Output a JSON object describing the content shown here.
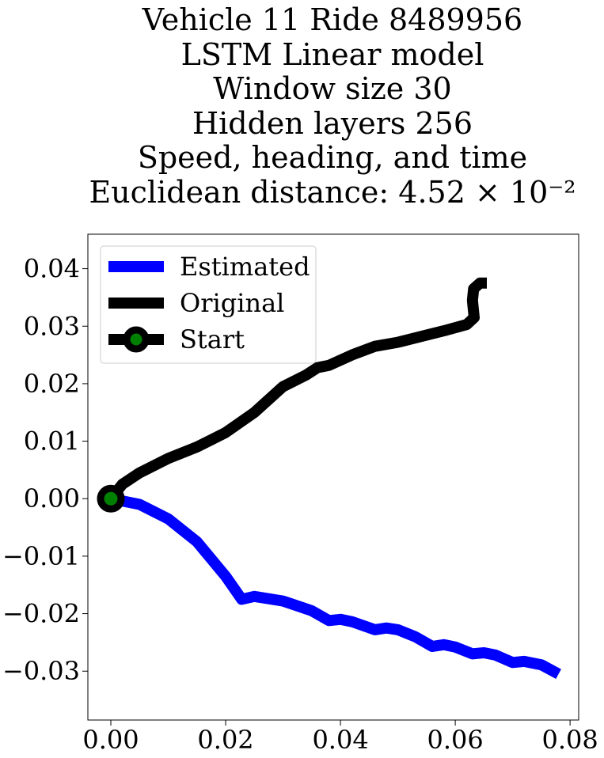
{
  "chart_data": {
    "type": "line",
    "title_lines": [
      "Vehicle 11 Ride 8489956",
      "LSTM Linear model",
      "Window size 30",
      "Hidden layers 256",
      "Speed, heading, and time",
      "Euclidean distance: 4.52 × 10⁻²"
    ],
    "xlabel": "",
    "ylabel": "",
    "xlim": [
      -0.004,
      0.0815
    ],
    "ylim": [
      -0.0385,
      0.046
    ],
    "xticks": [
      0.0,
      0.02,
      0.04,
      0.06,
      0.08
    ],
    "xtick_labels": [
      "0.00",
      "0.02",
      "0.04",
      "0.06",
      "0.08"
    ],
    "yticks": [
      0.04,
      0.03,
      0.02,
      0.01,
      0.0,
      -0.01,
      -0.02,
      -0.03
    ],
    "ytick_labels": [
      "0.04",
      "0.03",
      "0.02",
      "0.01",
      "0.00",
      "−0.01",
      "−0.02",
      "−0.03"
    ],
    "grid": false,
    "legend_position": "top-left",
    "series": [
      {
        "name": "Estimated",
        "color": "#0000ff",
        "x": [
          0,
          0.005,
          0.01,
          0.015,
          0.02,
          0.0228,
          0.025,
          0.03,
          0.035,
          0.038,
          0.04,
          0.042,
          0.046,
          0.048,
          0.05,
          0.053,
          0.056,
          0.058,
          0.06,
          0.063,
          0.065,
          0.067,
          0.07,
          0.072,
          0.075,
          0.078
        ],
        "y": [
          0,
          -0.001,
          -0.0035,
          -0.0075,
          -0.0135,
          -0.0175,
          -0.017,
          -0.0178,
          -0.0195,
          -0.0212,
          -0.021,
          -0.0214,
          -0.0228,
          -0.0225,
          -0.0228,
          -0.024,
          -0.0257,
          -0.0254,
          -0.0258,
          -0.027,
          -0.0268,
          -0.0272,
          -0.0285,
          -0.0283,
          -0.0289,
          -0.0305
        ]
      },
      {
        "name": "Original",
        "color": "#000000",
        "x": [
          0,
          0.002,
          0.005,
          0.01,
          0.015,
          0.02,
          0.025,
          0.03,
          0.034,
          0.036,
          0.038,
          0.042,
          0.046,
          0.05,
          0.054,
          0.058,
          0.062,
          0.0633,
          0.063,
          0.0632,
          0.0643,
          0.0655
        ],
        "y": [
          0,
          0.0025,
          0.0045,
          0.007,
          0.009,
          0.0115,
          0.015,
          0.0195,
          0.0215,
          0.0228,
          0.0232,
          0.025,
          0.0265,
          0.0272,
          0.0282,
          0.0292,
          0.0303,
          0.0315,
          0.0345,
          0.0365,
          0.0375,
          0.0375
        ]
      }
    ],
    "start_point": {
      "name": "Start",
      "x": 0.0,
      "y": 0.0,
      "edge_color": "#000000",
      "face_color": "#008000"
    }
  }
}
